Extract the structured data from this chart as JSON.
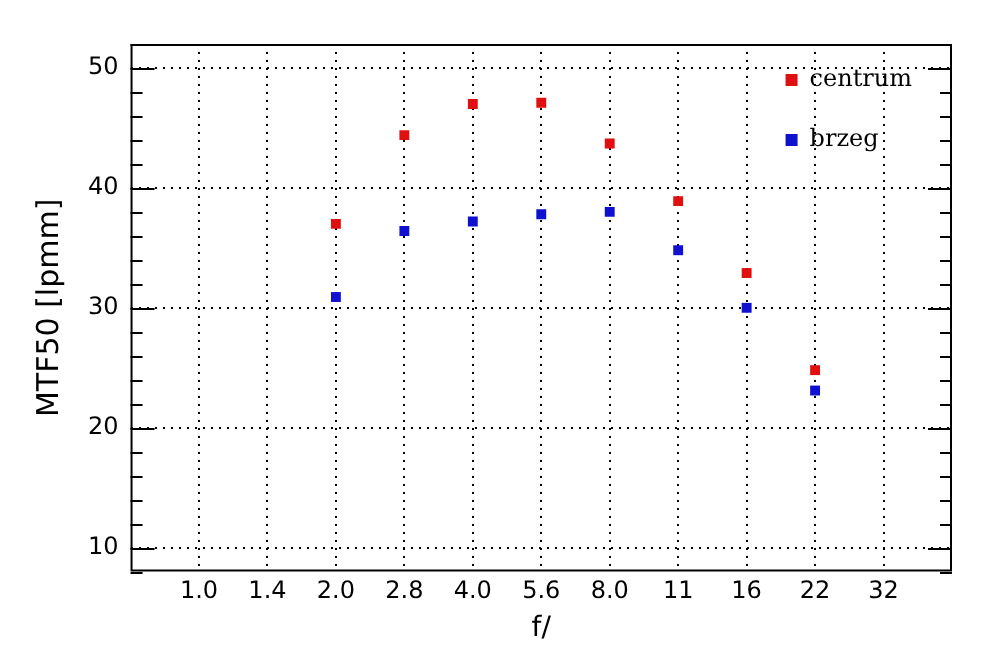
{
  "chart_data": {
    "type": "scatter",
    "xlabel": "f/",
    "ylabel": "MTF50 [lpmm]",
    "categories": [
      "1.0",
      "1.4",
      "2.0",
      "2.8",
      "4.0",
      "5.6",
      "8.0",
      "11",
      "16",
      "22",
      "32"
    ],
    "series": [
      {
        "name": "centrum",
        "color": "#e01010",
        "values": [
          null,
          null,
          37.0,
          44.4,
          47.0,
          47.1,
          43.7,
          38.9,
          32.9,
          24.8,
          null
        ]
      },
      {
        "name": "brzeg",
        "color": "#1010d0",
        "values": [
          null,
          null,
          30.9,
          36.4,
          37.2,
          37.8,
          38.0,
          34.8,
          30.0,
          23.1,
          null
        ]
      }
    ],
    "ylim": [
      8,
      52
    ],
    "yticks": [
      {
        "value": 8,
        "label": null
      },
      10,
      {
        "value": 12,
        "label": null
      },
      {
        "value": 14,
        "label": null
      },
      {
        "value": 16,
        "label": null
      },
      {
        "value": 18,
        "label": null
      },
      20,
      {
        "value": 22,
        "label": null
      },
      {
        "value": 24,
        "label": null
      },
      {
        "value": 26,
        "label": null
      },
      {
        "value": 28,
        "label": null
      },
      30,
      {
        "value": 32,
        "label": null
      },
      {
        "value": 34,
        "label": null
      },
      {
        "value": 36,
        "label": null
      },
      {
        "value": 38,
        "label": null
      },
      40,
      {
        "value": 42,
        "label": null
      },
      {
        "value": 44,
        "label": null
      },
      {
        "value": 46,
        "label": null
      },
      {
        "value": 48,
        "label": null
      },
      50,
      {
        "value": 52,
        "label": null
      }
    ],
    "grid": true,
    "marker": "square",
    "legend": "top right"
  }
}
